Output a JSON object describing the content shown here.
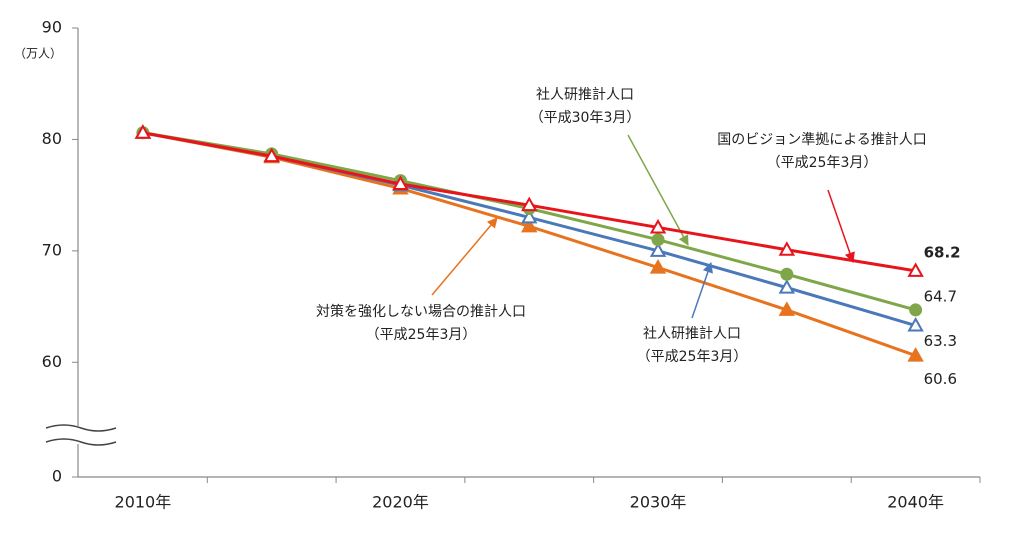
{
  "chart_data": {
    "type": "line",
    "y_unit": "（万人）",
    "categories": [
      "2010年",
      null,
      "2020年",
      null,
      "2030年",
      null,
      "2040年"
    ],
    "ylim": [
      0,
      90
    ],
    "yticks": [
      0,
      60,
      70,
      80,
      90
    ],
    "axis_break": [
      0,
      55
    ],
    "series": [
      {
        "name": "国のビジョン準拠による推計人口",
        "note": "（平成25年3月）",
        "color": "#e8141c",
        "marker": "triangle-open",
        "emphasis": true,
        "values": [
          80.6,
          78.5,
          76.0,
          74.1,
          72.1,
          70.1,
          68.2
        ]
      },
      {
        "name": "社人研推計人口",
        "note": "（平成30年3月）",
        "color": "#7fa648",
        "marker": "circle",
        "emphasis": false,
        "values": [
          80.6,
          78.7,
          76.3,
          73.8,
          71.0,
          67.9,
          64.7
        ]
      },
      {
        "name": "社人研推計人口",
        "note": "（平成25年3月）",
        "color": "#4a78b8",
        "marker": "triangle-open",
        "emphasis": false,
        "values": [
          80.6,
          78.5,
          75.9,
          73.0,
          70.0,
          66.7,
          63.3
        ]
      },
      {
        "name": "対策を強化しない場合の推計人口",
        "note": "（平成25年3月）",
        "color": "#e8731e",
        "marker": "triangle",
        "emphasis": false,
        "values": [
          80.6,
          78.4,
          75.6,
          72.2,
          68.5,
          64.7,
          60.6
        ]
      }
    ]
  }
}
